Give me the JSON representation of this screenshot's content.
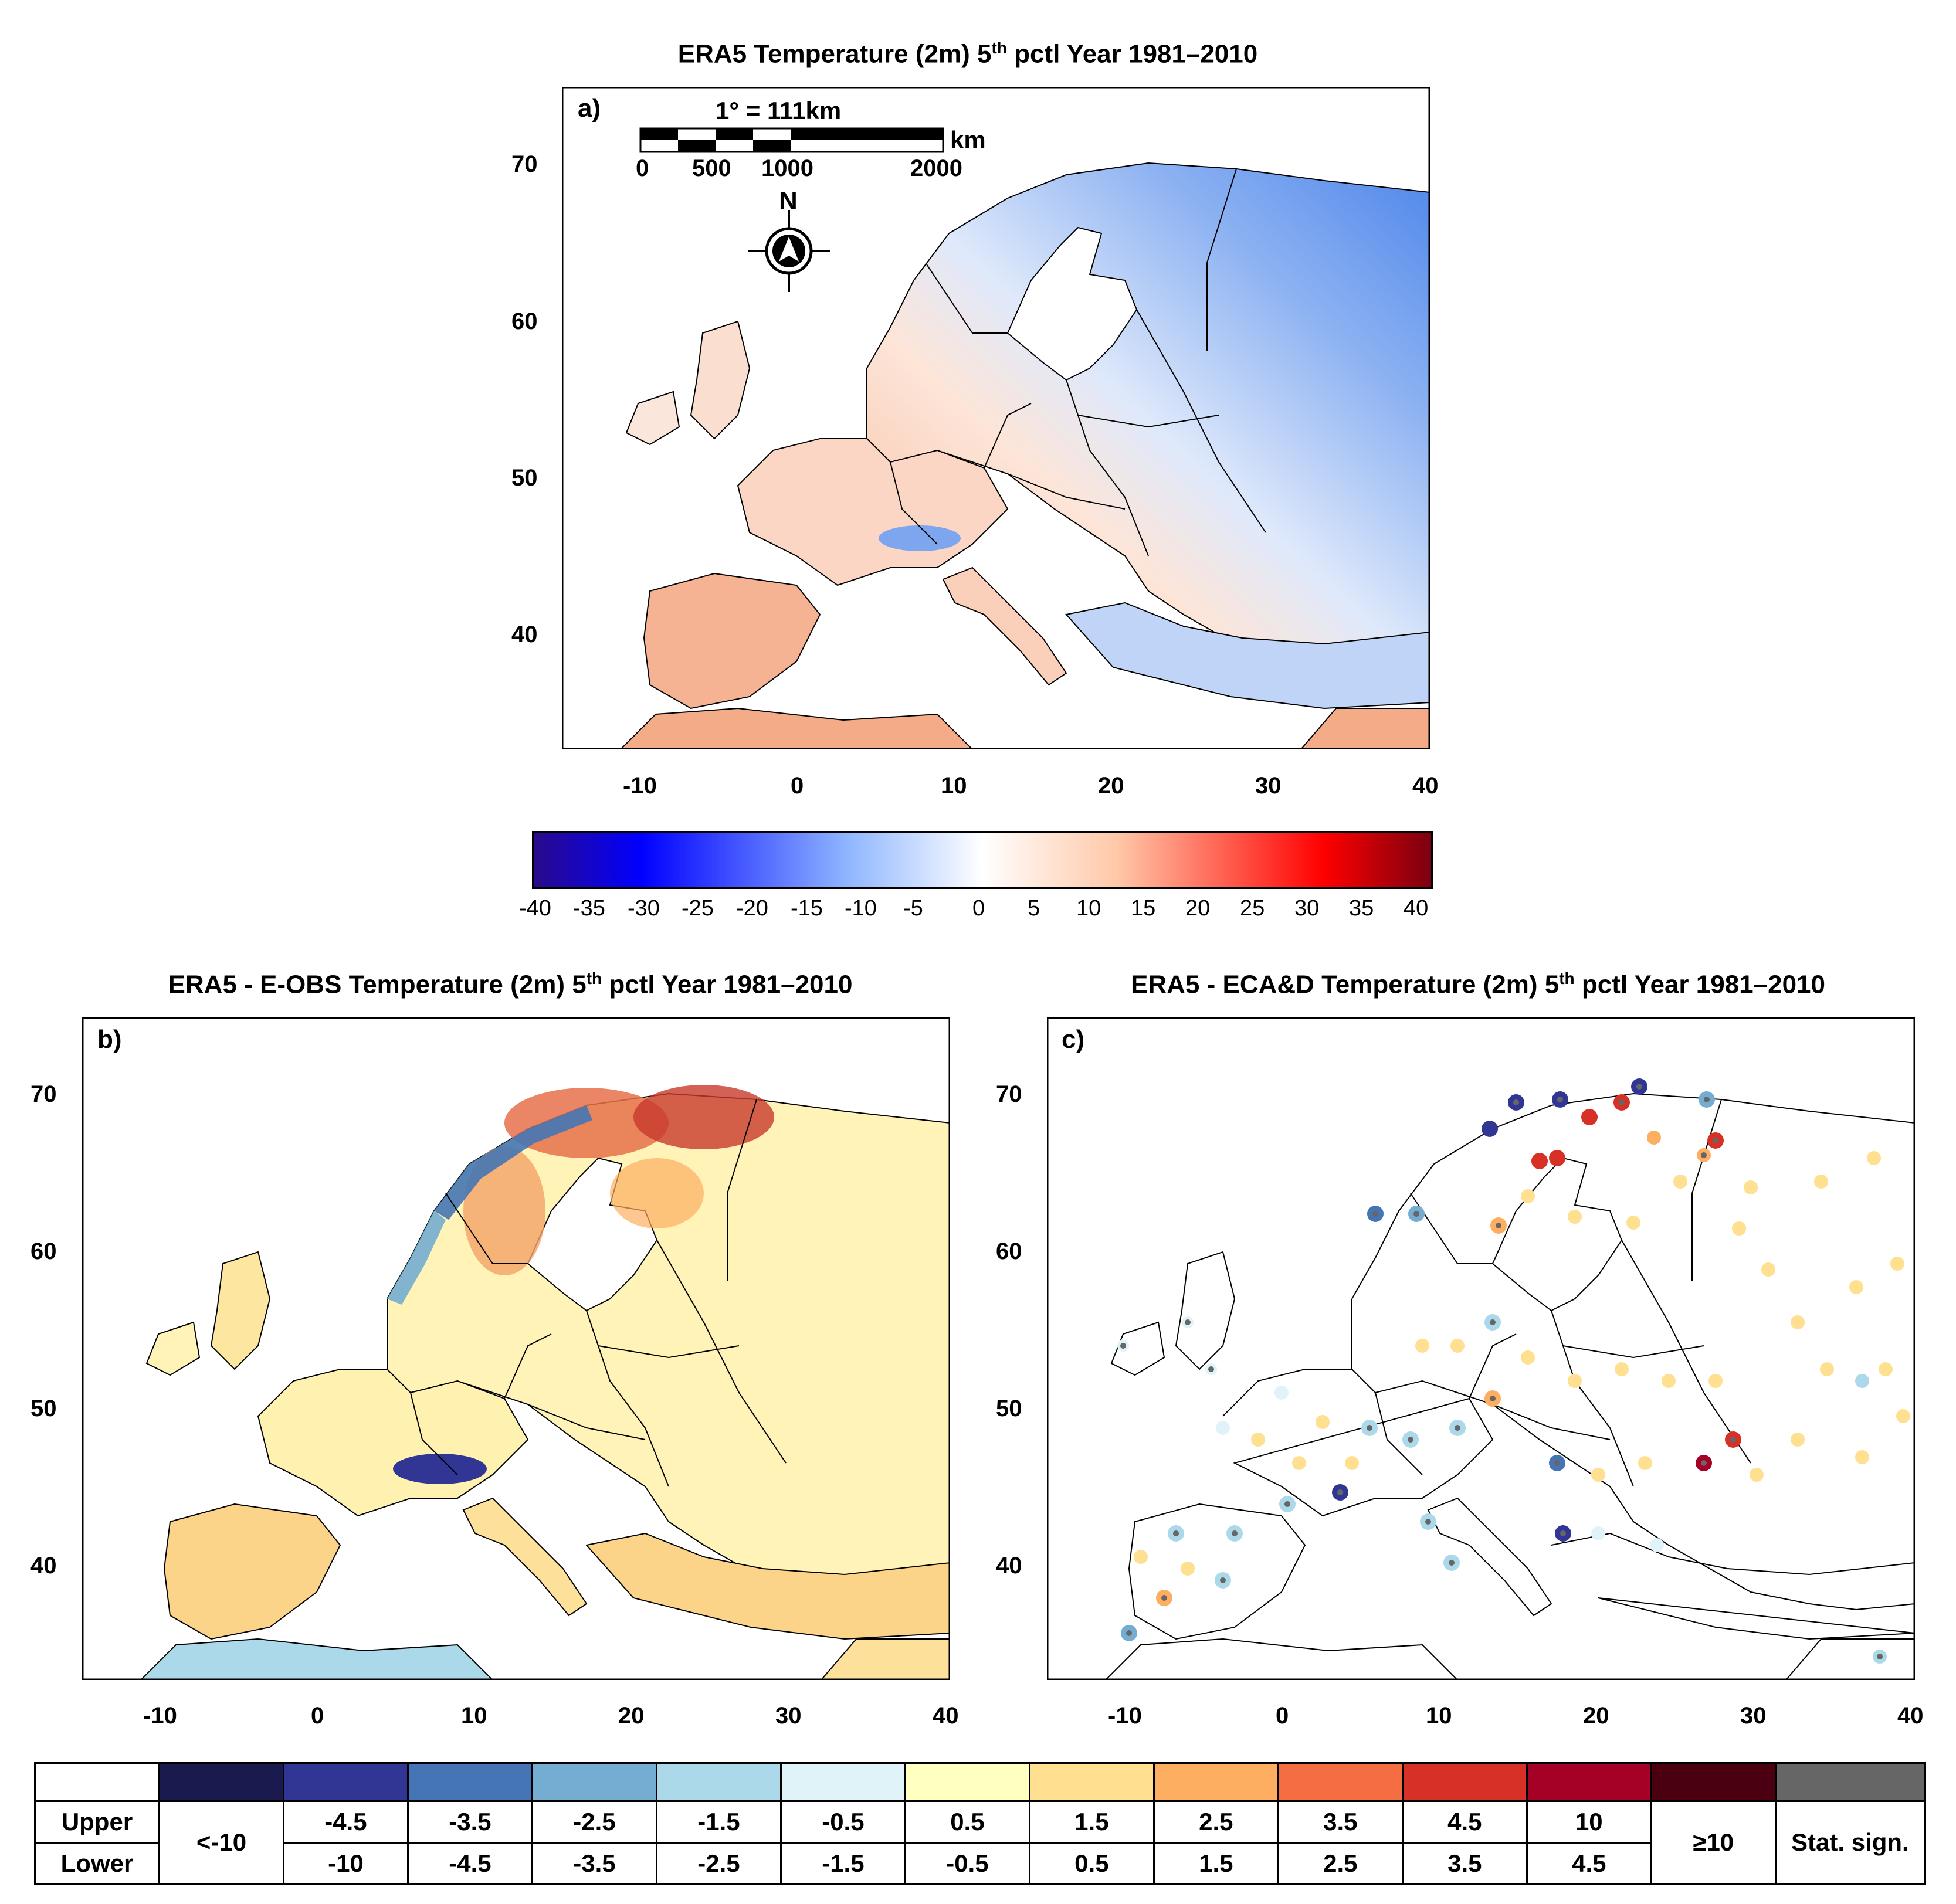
{
  "panels": {
    "a": {
      "title_prefix": "ERA5 Temperature (2m) 5",
      "title_sup": "th",
      "title_suffix": " pctl Year 1981–2010",
      "label": "a)",
      "yticks": [
        "70",
        "60",
        "50",
        "40"
      ],
      "xticks": [
        "-10",
        "0",
        "10",
        "20",
        "30",
        "40"
      ]
    },
    "b": {
      "title_prefix": "ERA5 - E-OBS Temperature (2m) 5",
      "title_sup": "th",
      "title_suffix": " pctl Year 1981–2010",
      "label": "b)",
      "yticks": [
        "70",
        "60",
        "50",
        "40"
      ],
      "xticks": [
        "-10",
        "0",
        "10",
        "20",
        "30",
        "40"
      ]
    },
    "c": {
      "title_prefix": "ERA5 - ECA&D Temperature (2m) 5",
      "title_sup": "th",
      "title_suffix": " pctl Year 1981–2010",
      "label": "c)",
      "yticks": [
        "70",
        "60",
        "50",
        "40"
      ],
      "xticks": [
        "-10",
        "0",
        "10",
        "20",
        "30",
        "40"
      ]
    }
  },
  "scalebar": {
    "title": "1° = 111km",
    "unit": "km",
    "labels": [
      "0",
      "500",
      "1000",
      "2000"
    ]
  },
  "north_arrow": {
    "label": "N",
    "icon": "north-arrow-compass-icon"
  },
  "colorbar": {
    "ticks": [
      "-40",
      "-35",
      "-30",
      "-25",
      "-20",
      "-15",
      "-10",
      "-5",
      "0",
      "5",
      "10",
      "15",
      "20",
      "25",
      "30",
      "35",
      "40"
    ],
    "range": [
      -40,
      40
    ],
    "colors": [
      "#2a0a8a",
      "#0000ff",
      "#8fb6ff",
      "#ffffff",
      "#ffc8a8",
      "#ff0000",
      "#7a0010"
    ]
  },
  "legend": {
    "row_labels": {
      "upper": "Upper",
      "lower": "Lower"
    },
    "first_bin": "<-10",
    "last_bin": "≥10",
    "stat_sign": "Stat. sign.",
    "bins": [
      {
        "upper": "-4.5",
        "lower": "-10",
        "color": "#313695"
      },
      {
        "upper": "-3.5",
        "lower": "-4.5",
        "color": "#4575b4"
      },
      {
        "upper": "-2.5",
        "lower": "-3.5",
        "color": "#74add1"
      },
      {
        "upper": "-1.5",
        "lower": "-2.5",
        "color": "#abd9e9"
      },
      {
        "upper": "-0.5",
        "lower": "-1.5",
        "color": "#e0f3f8"
      },
      {
        "upper": "0.5",
        "lower": "-0.5",
        "color": "#ffffbf"
      },
      {
        "upper": "1.5",
        "lower": "0.5",
        "color": "#fee090"
      },
      {
        "upper": "2.5",
        "lower": "1.5",
        "color": "#fdae61"
      },
      {
        "upper": "3.5",
        "lower": "2.5",
        "color": "#f46d43"
      },
      {
        "upper": "4.5",
        "lower": "3.5",
        "color": "#d73027"
      },
      {
        "upper": "10",
        "lower": "4.5",
        "color": "#a50026"
      }
    ],
    "first_color": "#1a1a4e",
    "last_color": "#4a0010",
    "stat_color": "#666666"
  }
}
